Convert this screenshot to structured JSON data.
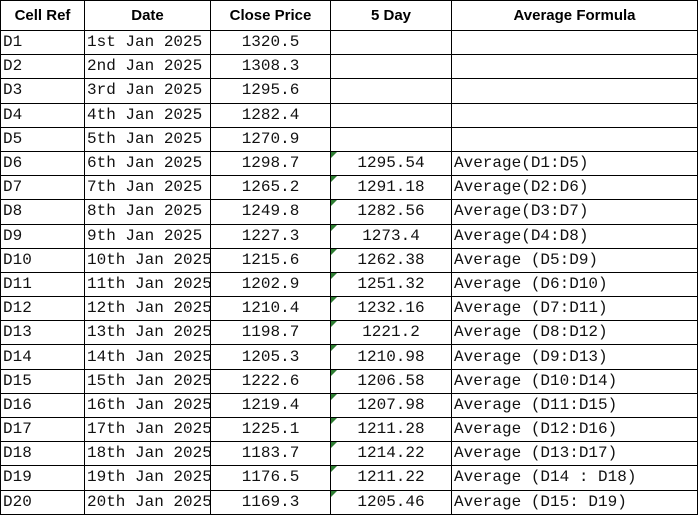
{
  "table": {
    "headers": {
      "ref": "Cell Ref",
      "date": "Date",
      "close": "Close Price",
      "avg5": "5 Day",
      "formula": "Average Formula"
    },
    "rows": [
      {
        "ref": "D1",
        "date": "1st Jan 2025",
        "close": "1320.5"
      },
      {
        "ref": "D2",
        "date": "2nd Jan 2025",
        "close": "1308.3"
      },
      {
        "ref": "D3",
        "date": "3rd Jan 2025",
        "close": "1295.6"
      },
      {
        "ref": "D4",
        "date": "4th Jan 2025",
        "close": "1282.4"
      },
      {
        "ref": "D5",
        "date": "5th Jan 2025",
        "close": "1270.9"
      },
      {
        "ref": "D6",
        "date": "6th Jan 2025",
        "close": "1298.7",
        "avg5": "1295.54",
        "formula": "Average(D1:D5)"
      },
      {
        "ref": "D7",
        "date": "7th Jan 2025",
        "close": "1265.2",
        "avg5": "1291.18",
        "formula": "Average(D2:D6)"
      },
      {
        "ref": "D8",
        "date": "8th Jan 2025",
        "close": "1249.8",
        "avg5": "1282.56",
        "formula": "Average(D3:D7)"
      },
      {
        "ref": "D9",
        "date": "9th Jan 2025",
        "close": "1227.3",
        "avg5": "1273.4",
        "formula": "Average(D4:D8)"
      },
      {
        "ref": "D10",
        "date": "10th Jan 2025",
        "close": "1215.6",
        "avg5": "1262.38",
        "formula": "Average (D5:D9)"
      },
      {
        "ref": "D11",
        "date": "11th Jan 2025",
        "close": "1202.9",
        "avg5": "1251.32",
        "formula": "Average (D6:D10)"
      },
      {
        "ref": "D12",
        "date": "12th Jan 2025",
        "close": "1210.4",
        "avg5": "1232.16",
        "formula": "Average (D7:D11)"
      },
      {
        "ref": "D13",
        "date": "13th Jan 2025",
        "close": "1198.7",
        "avg5": "1221.2",
        "formula": "Average (D8:D12)"
      },
      {
        "ref": "D14",
        "date": "14th Jan 2025",
        "close": "1205.3",
        "avg5": "1210.98",
        "formula": "Average (D9:D13)"
      },
      {
        "ref": "D15",
        "date": "15th Jan 2025",
        "close": "1222.6",
        "avg5": "1206.58",
        "formula": "Average (D10:D14)"
      },
      {
        "ref": "D16",
        "date": "16th Jan 2025",
        "close": "1219.4",
        "avg5": "1207.98",
        "formula": "Average (D11:D15)"
      },
      {
        "ref": "D17",
        "date": "17th Jan 2025",
        "close": "1225.1",
        "avg5": "1211.28",
        "formula": "Average (D12:D16)"
      },
      {
        "ref": "D18",
        "date": "18th Jan 2025",
        "close": "1183.7",
        "avg5": "1214.22",
        "formula": "Average (D13:D17)"
      },
      {
        "ref": "D19",
        "date": "19th Jan 2025",
        "close": "1176.5",
        "avg5": "1211.22",
        "formula": "Average (D14 : D18)"
      },
      {
        "ref": "D20",
        "date": "20th Jan 2025",
        "close": "1169.3",
        "avg5": "1205.46",
        "formula": "Average (D15: D19)"
      }
    ]
  }
}
